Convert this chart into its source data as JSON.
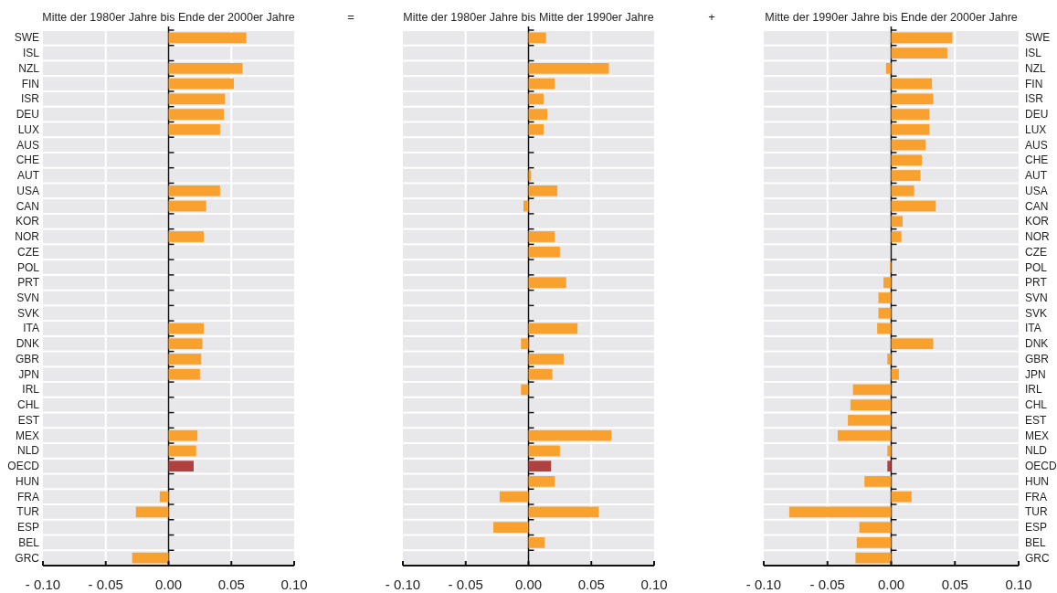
{
  "chart_data": [
    {
      "type": "bar",
      "orientation": "horizontal",
      "title": "Mitte der 1980er Jahre bis Ende der 2000er Jahre",
      "categories": [
        "SWE",
        "ISL",
        "NZL",
        "FIN",
        "ISR",
        "DEU",
        "LUX",
        "AUS",
        "CHE",
        "AUT",
        "USA",
        "CAN",
        "KOR",
        "NOR",
        "CZE",
        "POL",
        "PRT",
        "SVN",
        "SVK",
        "ITA",
        "DNK",
        "GBR",
        "JPN",
        "IRL",
        "CHL",
        "EST",
        "MEX",
        "NLD",
        "OECD",
        "HUN",
        "FRA",
        "TUR",
        "ESP",
        "BEL",
        "GRC"
      ],
      "values": [
        0.062,
        null,
        0.059,
        0.052,
        0.045,
        0.044,
        0.041,
        null,
        null,
        null,
        0.041,
        0.03,
        null,
        0.028,
        null,
        null,
        null,
        null,
        null,
        0.028,
        0.027,
        0.026,
        0.025,
        null,
        null,
        null,
        0.023,
        0.022,
        0.02,
        null,
        -0.007,
        -0.026,
        null,
        null,
        -0.029
      ],
      "colors": [
        "#f9a12f",
        null,
        "#f9a12f",
        "#f9a12f",
        "#f9a12f",
        "#f9a12f",
        "#f9a12f",
        null,
        null,
        null,
        "#f9a12f",
        "#f9a12f",
        null,
        "#f9a12f",
        null,
        null,
        null,
        null,
        null,
        "#f9a12f",
        "#f9a12f",
        "#f9a12f",
        "#f9a12f",
        null,
        null,
        null,
        "#f9a12f",
        "#f9a12f",
        "#b0413e",
        null,
        "#f9a12f",
        "#f9a12f",
        null,
        null,
        "#f9a12f"
      ],
      "xlim": [
        -0.1,
        0.1
      ],
      "xticks": [
        {
          "value": -0.1,
          "label": "- 0.10"
        },
        {
          "value": -0.05,
          "label": "- 0.05"
        },
        {
          "value": 0,
          "label": "0.00"
        },
        {
          "value": 0.05,
          "label": "0.05"
        },
        {
          "value": 0.1,
          "label": "0.10"
        }
      ],
      "grid": "x"
    },
    {
      "type": "bar",
      "orientation": "horizontal",
      "title": "Mitte der 1980er Jahre bis Mitte der 1990er Jahre",
      "annotations": [
        "="
      ],
      "categories": [
        null,
        null,
        null,
        null,
        null,
        null,
        null,
        null,
        null,
        null,
        null,
        null,
        null,
        null,
        null,
        null,
        null,
        null,
        null,
        null,
        null,
        null,
        null,
        null,
        null,
        null,
        null,
        null,
        null,
        null,
        null,
        null,
        null,
        null,
        null
      ],
      "values": [
        0.014,
        null,
        0.064,
        0.021,
        0.012,
        0.015,
        0.012,
        null,
        null,
        0.002,
        0.023,
        -0.004,
        null,
        0.021,
        0.025,
        null,
        0.03,
        null,
        null,
        0.039,
        -0.006,
        0.028,
        0.019,
        -0.006,
        null,
        null,
        0.066,
        0.025,
        0.018,
        0.021,
        -0.023,
        0.056,
        -0.028,
        0.013,
        null
      ],
      "colors": [
        "#f9a12f",
        null,
        "#f9a12f",
        "#f9a12f",
        "#f9a12f",
        "#f9a12f",
        "#f9a12f",
        null,
        null,
        "#f9a12f",
        "#f9a12f",
        "#f9a12f",
        null,
        "#f9a12f",
        "#f9a12f",
        null,
        "#f9a12f",
        null,
        null,
        "#f9a12f",
        "#f9a12f",
        "#f9a12f",
        "#f9a12f",
        "#f9a12f",
        null,
        null,
        "#f9a12f",
        "#f9a12f",
        "#b0413e",
        "#f9a12f",
        "#f9a12f",
        "#f9a12f",
        "#f9a12f",
        "#f9a12f",
        null
      ],
      "xlim": [
        -0.1,
        0.1
      ],
      "xticks": [
        {
          "value": -0.1,
          "label": "- 0.10"
        },
        {
          "value": -0.05,
          "label": "- 0.05"
        },
        {
          "value": 0,
          "label": "0.00"
        },
        {
          "value": 0.05,
          "label": "0.05"
        },
        {
          "value": 0.1,
          "label": "0.10"
        }
      ],
      "grid": "x",
      "tick_labels": "x"
    },
    {
      "type": "bar",
      "orientation": "horizontal",
      "title": "Mitte der 1990er Jahre bis Ende der 2000er Jahre",
      "annotations": [
        "+"
      ],
      "categories": [
        "SWE",
        "ISL",
        "NZL",
        "FIN",
        "ISR",
        "DEU",
        "LUX",
        "AUS",
        "CHE",
        "AUT",
        "USA",
        "CAN",
        "KOR",
        "NOR",
        "CZE",
        "POL",
        "PRT",
        "SVN",
        "SVK",
        "ITA",
        "DNK",
        "GBR",
        "JPN",
        "IRL",
        "CHL",
        "EST",
        "MEX",
        "NLD",
        "OECD",
        "HUN",
        "FRA",
        "TUR",
        "ESP",
        "BEL",
        "GRC"
      ],
      "values": [
        0.048,
        0.044,
        -0.004,
        0.032,
        0.033,
        0.03,
        0.03,
        0.027,
        0.024,
        0.023,
        0.018,
        0.035,
        0.009,
        0.008,
        null,
        -0.001,
        -0.006,
        -0.01,
        -0.01,
        -0.011,
        0.033,
        -0.003,
        0.006,
        -0.03,
        -0.032,
        -0.034,
        -0.042,
        -0.003,
        -0.003,
        -0.021,
        0.016,
        -0.08,
        -0.025,
        -0.027,
        -0.028
      ],
      "colors": [
        "#f9a12f",
        "#f9a12f",
        "#f9a12f",
        "#f9a12f",
        "#f9a12f",
        "#f9a12f",
        "#f9a12f",
        "#f9a12f",
        "#f9a12f",
        "#f9a12f",
        "#f9a12f",
        "#f9a12f",
        "#f9a12f",
        "#f9a12f",
        null,
        "#f9a12f",
        "#f9a12f",
        "#f9a12f",
        "#f9a12f",
        "#f9a12f",
        "#f9a12f",
        "#f9a12f",
        "#f9a12f",
        "#f9a12f",
        "#f9a12f",
        "#f9a12f",
        "#f9a12f",
        "#f9a12f",
        "#b0413e",
        "#f9a12f",
        "#f9a12f",
        "#f9a12f",
        "#f9a12f",
        "#f9a12f",
        "#f9a12f"
      ],
      "xlim": [
        -0.1,
        0.1
      ],
      "xticks": [
        {
          "value": -0.1,
          "label": "- 0.10"
        },
        {
          "value": -0.05,
          "label": "- 0.05"
        },
        {
          "value": 0,
          "label": "0.00"
        },
        {
          "value": 0.05,
          "label": "0.05"
        },
        {
          "value": 0.1,
          "label": "0.10"
        }
      ],
      "grid": "x"
    }
  ]
}
